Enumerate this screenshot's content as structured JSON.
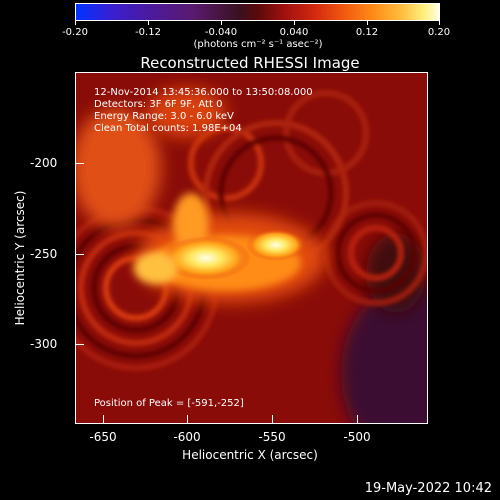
{
  "colorbar": {
    "tick_labels": [
      "-0.20",
      "-0.12",
      "-0.040",
      "0.040",
      "0.12",
      "0.20"
    ],
    "units": "(photons cm⁻² s⁻¹ asec⁻²)"
  },
  "title": "Reconstructed RHESSI Image",
  "info": {
    "time": "12-Nov-2014 13:45:36.000 to 13:50:08.000",
    "detectors": "Detectors: 3F 6F 9F, Att 0",
    "energy": "Energy Range: 3.0 - 6.0 keV",
    "clean": "Clean     Total counts: 1.98E+04"
  },
  "peak": "Position of Peak = [-591,-252]",
  "axes": {
    "xlabel": "Heliocentric X (arcsec)",
    "ylabel": "Heliocentric Y (arcsec)",
    "xticks": [
      "-650",
      "-600",
      "-550",
      "-500"
    ],
    "yticks": [
      "-200",
      "-250",
      "-300"
    ]
  },
  "footer_date": "19-May-2022 10:42"
}
